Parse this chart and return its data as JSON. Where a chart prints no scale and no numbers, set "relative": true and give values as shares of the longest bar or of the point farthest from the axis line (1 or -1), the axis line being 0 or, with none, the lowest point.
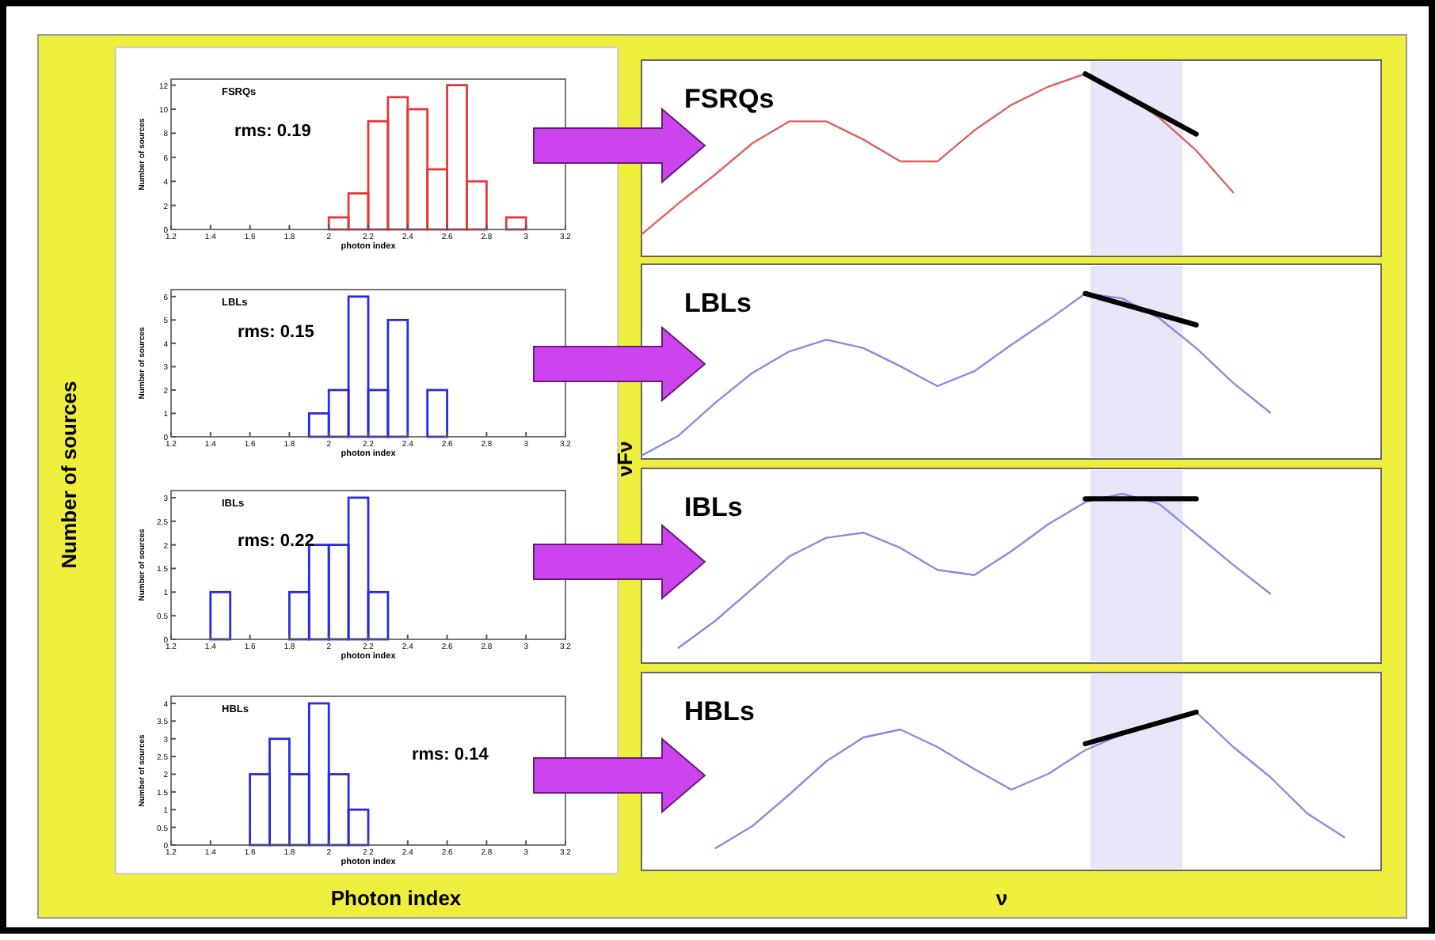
{
  "chart_data": [
    {
      "type": "histogram",
      "title": "FSRQs",
      "xlabel": "photon index",
      "ylabel": "Number of sources",
      "annotations": [
        "rms: 0.19"
      ],
      "color": "#e03a3a",
      "bins": [
        1.2,
        1.3,
        1.4,
        1.5,
        1.6,
        1.7,
        1.8,
        1.9,
        2.0,
        2.1,
        2.2,
        2.3,
        2.4,
        2.5,
        2.6,
        2.7,
        2.8,
        2.9,
        3.0,
        3.1,
        3.2
      ],
      "values": [
        0,
        0,
        0,
        0,
        0,
        0,
        0,
        0,
        1,
        3,
        9,
        11,
        10,
        5,
        12,
        4,
        0,
        1,
        0,
        0
      ],
      "xlim": [
        1.2,
        3.2
      ],
      "xticks": [
        1.2,
        1.4,
        1.6,
        1.8,
        2,
        2.2,
        2.4,
        2.6,
        2.8,
        3,
        3.2
      ],
      "ylim": [
        0,
        12.5
      ],
      "yticks": [
        0,
        2,
        4,
        6,
        8,
        10,
        12
      ]
    },
    {
      "type": "histogram",
      "title": "LBLs",
      "xlabel": "photon index",
      "ylabel": "Number of sources",
      "annotations": [
        "rms: 0.15"
      ],
      "color": "#2a2ae0",
      "bins": [
        1.2,
        1.3,
        1.4,
        1.5,
        1.6,
        1.7,
        1.8,
        1.9,
        2.0,
        2.1,
        2.2,
        2.3,
        2.4,
        2.5,
        2.6,
        2.7,
        2.8,
        2.9,
        3.0,
        3.1,
        3.2
      ],
      "values": [
        0,
        0,
        0,
        0,
        0,
        0,
        0,
        1,
        2,
        6,
        2,
        5,
        0,
        2,
        0,
        0,
        0,
        0,
        0,
        0
      ],
      "xlim": [
        1.2,
        3.2
      ],
      "xticks": [
        1.2,
        1.4,
        1.6,
        1.8,
        2,
        2.2,
        2.4,
        2.6,
        2.8,
        3,
        3.2
      ],
      "ylim": [
        0,
        6.3
      ],
      "yticks": [
        0,
        1,
        2,
        3,
        4,
        5,
        6
      ]
    },
    {
      "type": "histogram",
      "title": "IBLs",
      "xlabel": "photon index",
      "ylabel": "Number of sources",
      "annotations": [
        "rms: 0.22"
      ],
      "color": "#2a2ae0",
      "bins": [
        1.2,
        1.3,
        1.4,
        1.5,
        1.6,
        1.7,
        1.8,
        1.9,
        2.0,
        2.1,
        2.2,
        2.3,
        2.4,
        2.5,
        2.6,
        2.7,
        2.8,
        2.9,
        3.0,
        3.1,
        3.2
      ],
      "values": [
        0,
        0,
        1,
        0,
        0,
        0,
        1,
        2,
        2,
        3,
        1,
        0,
        0,
        0,
        0,
        0,
        0,
        0,
        0,
        0
      ],
      "xlim": [
        1.2,
        3.2
      ],
      "xticks": [
        1.2,
        1.4,
        1.6,
        1.8,
        2,
        2.2,
        2.4,
        2.6,
        2.8,
        3,
        3.2
      ],
      "ylim": [
        0,
        3.15
      ],
      "yticks": [
        0,
        0.5,
        1,
        1.5,
        2,
        2.5,
        3
      ]
    },
    {
      "type": "histogram",
      "title": "HBLs",
      "xlabel": "photon index",
      "ylabel": "Number of sources",
      "annotations": [
        "rms: 0.14"
      ],
      "color": "#2a2ae0",
      "bins": [
        1.2,
        1.3,
        1.4,
        1.5,
        1.6,
        1.7,
        1.8,
        1.9,
        2.0,
        2.1,
        2.2,
        2.3,
        2.4,
        2.5,
        2.6,
        2.7,
        2.8,
        2.9,
        3.0,
        3.1,
        3.2
      ],
      "values": [
        0,
        0,
        0,
        0,
        2,
        3,
        2,
        4,
        2,
        1,
        0,
        0,
        0,
        0,
        0,
        0,
        0,
        0,
        0,
        0
      ],
      "xlim": [
        1.2,
        3.2
      ],
      "xticks": [
        1.2,
        1.4,
        1.6,
        1.8,
        2,
        2.2,
        2.4,
        2.6,
        2.8,
        3,
        3.2
      ],
      "ylim": [
        0,
        4.2
      ],
      "yticks": [
        0,
        0.5,
        1,
        1.5,
        2,
        2.5,
        3,
        3.5,
        4
      ]
    },
    {
      "type": "line",
      "title": "FSRQs",
      "relative": true,
      "categories": [
        null,
        null,
        null,
        null,
        null,
        null,
        null,
        null,
        null,
        null,
        null,
        null,
        null,
        null,
        null,
        null,
        null,
        null,
        null,
        null,
        null
      ],
      "series": [
        {
          "color": "#e06060",
          "values": [
            0.12,
            0.29,
            0.45,
            0.62,
            0.74,
            0.74,
            0.64,
            0.52,
            0.52,
            0.69,
            0.83,
            0.93,
            1,
            0.9,
            0.76,
            0.58,
            0.35,
            null,
            null,
            null,
            null
          ]
        },
        {
          "type": "line",
          "color": "#000000",
          "values": [
            null,
            null,
            null,
            null,
            null,
            null,
            null,
            null,
            null,
            null,
            null,
            null,
            1,
            null,
            null,
            0.67,
            null,
            null,
            null,
            null,
            null
          ]
        }
      ]
    },
    {
      "type": "line",
      "title": "LBLs",
      "ylabel": "νFν",
      "relative": true,
      "categories": [
        null,
        null,
        null,
        null,
        null,
        null,
        null,
        null,
        null,
        null,
        null,
        null,
        null,
        null,
        null,
        null,
        null,
        null,
        null,
        null,
        null
      ],
      "series": [
        {
          "color": "#8a8ae6",
          "values": [
            0.02,
            0.14,
            0.34,
            0.52,
            0.65,
            0.72,
            0.67,
            0.56,
            0.44,
            0.53,
            0.69,
            0.84,
            1,
            0.97,
            0.85,
            0.67,
            0.46,
            0.28,
            null,
            null,
            null
          ]
        },
        {
          "type": "line",
          "color": "#000000",
          "values": [
            null,
            null,
            null,
            null,
            null,
            null,
            null,
            null,
            null,
            null,
            null,
            null,
            1,
            null,
            null,
            0.81,
            null,
            null,
            null,
            null,
            null
          ]
        }
      ]
    },
    {
      "type": "line",
      "title": "IBLs",
      "relative": true,
      "categories": [
        null,
        null,
        null,
        null,
        null,
        null,
        null,
        null,
        null,
        null,
        null,
        null,
        null,
        null,
        null,
        null,
        null,
        null,
        null,
        null,
        null
      ],
      "series": [
        {
          "color": "#8a8ae6",
          "values": [
            null,
            0.09,
            0.25,
            0.44,
            0.63,
            0.74,
            0.77,
            0.68,
            0.55,
            0.52,
            0.66,
            0.82,
            0.95,
            1,
            0.94,
            0.76,
            0.58,
            0.41,
            null,
            null,
            null
          ]
        },
        {
          "type": "line",
          "color": "#000000",
          "values": [
            null,
            null,
            null,
            null,
            null,
            null,
            null,
            null,
            null,
            null,
            null,
            null,
            0.97,
            null,
            null,
            0.97,
            null,
            null,
            null,
            null,
            null
          ]
        }
      ]
    },
    {
      "type": "line",
      "title": "HBLs",
      "xlabel": "ν",
      "relative": true,
      "categories": [
        null,
        null,
        null,
        null,
        null,
        null,
        null,
        null,
        null,
        null,
        null,
        null,
        null,
        null,
        null,
        null,
        null,
        null,
        null,
        null,
        null
      ],
      "series": [
        {
          "color": "#8a8ae6",
          "values": [
            null,
            null,
            0.14,
            0.28,
            0.48,
            0.69,
            0.84,
            0.89,
            0.78,
            0.64,
            0.51,
            0.61,
            0.76,
            0.86,
            0.94,
            1,
            0.78,
            0.59,
            0.36,
            0.21,
            null
          ]
        },
        {
          "type": "line",
          "color": "#000000",
          "values": [
            null,
            null,
            null,
            null,
            null,
            null,
            null,
            null,
            null,
            null,
            null,
            null,
            0.8,
            null,
            null,
            1,
            null,
            null,
            null,
            null,
            null
          ]
        }
      ]
    },
    {
      "type": "other",
      "xlabel": "Photon index",
      "ylabel": "Number of sources"
    }
  ]
}
